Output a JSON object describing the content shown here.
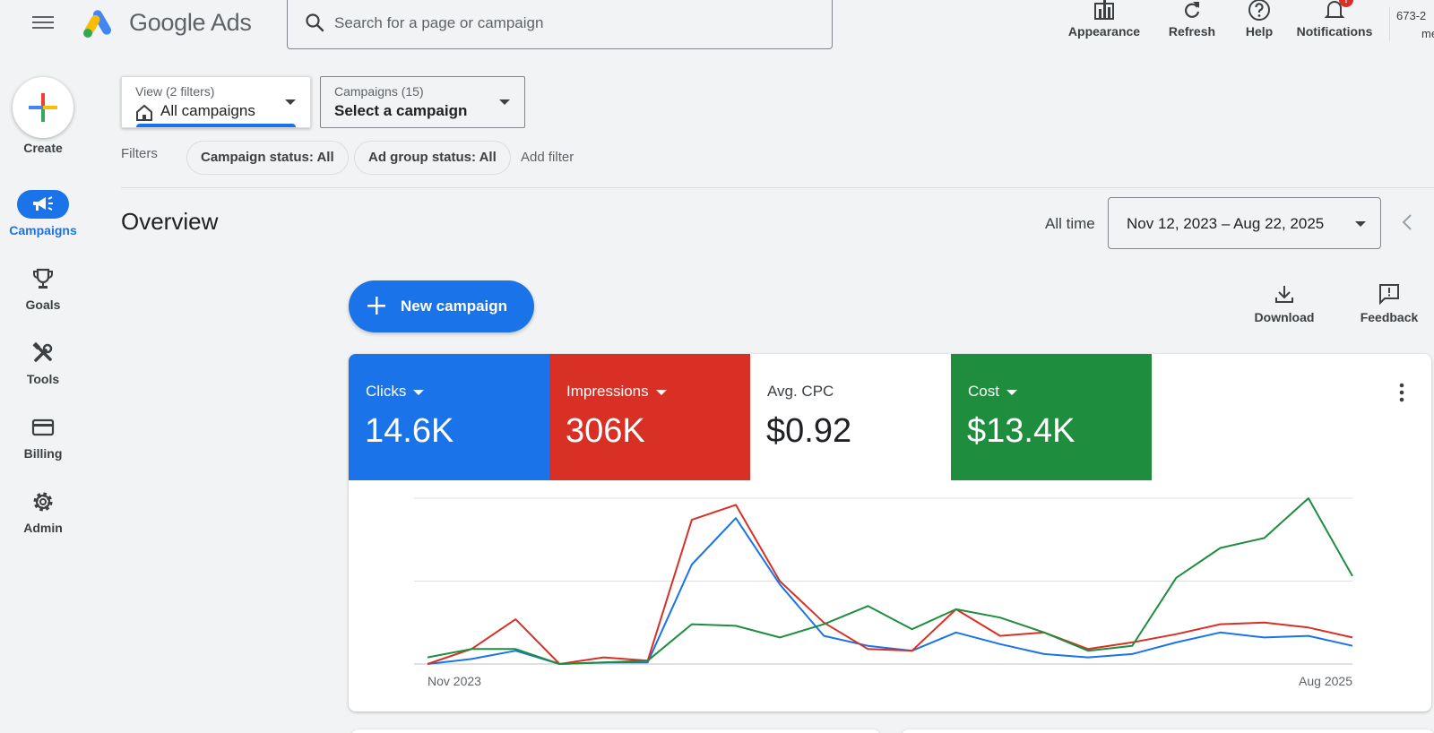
{
  "header": {
    "brand": "Google Ads",
    "search_placeholder": "Search for a page or campaign",
    "tools": {
      "appearance": "Appearance",
      "refresh": "Refresh",
      "help": "Help",
      "notifications": "Notifications",
      "notification_count": "!"
    },
    "account_id": "673-2",
    "account_name": "me"
  },
  "sidebar": {
    "create": "Create",
    "items": [
      {
        "label": "Campaigns",
        "icon": "megaphone-icon",
        "active": true
      },
      {
        "label": "Goals",
        "icon": "trophy-icon"
      },
      {
        "label": "Tools",
        "icon": "tools-icon"
      },
      {
        "label": "Billing",
        "icon": "credit-card-icon"
      },
      {
        "label": "Admin",
        "icon": "gear-icon"
      }
    ]
  },
  "filterbar": {
    "view_sub": "View (2 filters)",
    "view_main": "All campaigns",
    "campaigns_sub": "Campaigns (15)",
    "campaigns_main": "Select a campaign",
    "filters_label": "Filters",
    "chips": [
      "Campaign status: All",
      "Ad group status: All"
    ],
    "add_filter": "Add filter"
  },
  "overview": {
    "title": "Overview",
    "range_label": "All time",
    "date_range": "Nov 12, 2023 – Aug 22, 2025",
    "new_campaign": "New campaign",
    "download": "Download",
    "feedback": "Feedback"
  },
  "metrics": [
    {
      "label": "Clicks",
      "value": "14.6K",
      "color": "#1a73e8"
    },
    {
      "label": "Impressions",
      "value": "306K",
      "color": "#d93025"
    },
    {
      "label": "Avg. CPC",
      "value": "$0.92",
      "color": "#ffffff"
    },
    {
      "label": "Cost",
      "value": "$13.4K",
      "color": "#1e8e3e"
    }
  ],
  "chart_data": {
    "type": "line",
    "x_tick_labels": [
      "Nov 2023",
      "Aug 2025"
    ],
    "ylim": [
      0,
      100
    ],
    "grid": true,
    "series": [
      {
        "name": "Clicks",
        "color": "#1a73e8",
        "values": [
          0,
          3,
          8,
          0,
          1,
          1,
          60,
          88,
          48,
          17,
          11,
          8,
          19,
          12,
          6,
          4,
          6,
          13,
          19,
          16,
          17,
          11
        ]
      },
      {
        "name": "Impressions",
        "color": "#d93025",
        "values": [
          0,
          9,
          27,
          0,
          4,
          2,
          87,
          96,
          50,
          25,
          9,
          8,
          33,
          17,
          19,
          9,
          13,
          18,
          24,
          25,
          22,
          16
        ]
      },
      {
        "name": "Cost",
        "color": "#1e8e3e",
        "values": [
          4,
          9,
          9,
          0,
          1,
          2,
          24,
          23,
          16,
          24,
          35,
          21,
          33,
          28,
          19,
          8,
          11,
          52,
          70,
          76,
          100,
          53
        ]
      }
    ]
  }
}
